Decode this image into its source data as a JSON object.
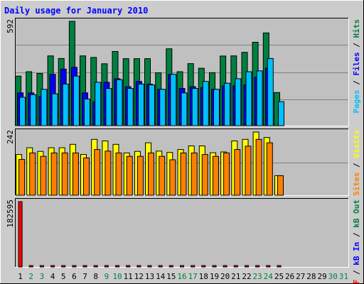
{
  "chart_data": {
    "type": "bar",
    "title": "Daily usage for January 2010",
    "categories": [
      "1",
      "2",
      "3",
      "4",
      "5",
      "6",
      "7",
      "8",
      "9",
      "10",
      "11",
      "12",
      "13",
      "14",
      "15",
      "16",
      "17",
      "18",
      "19",
      "20",
      "21",
      "22",
      "23",
      "24",
      "25",
      "26",
      "27",
      "28",
      "29",
      "30",
      "31"
    ],
    "weekend_days": [
      "2",
      "3",
      "9",
      "10",
      "16",
      "17",
      "23",
      "24",
      "30",
      "31"
    ],
    "colors": {
      "hits": "#008040",
      "files": "#0000ff",
      "pages": "#00c0ff",
      "visits": "#ffff00",
      "sites": "#ff8000",
      "kbin": "#0000ff",
      "kbout": "#008040",
      "kbf": "#ff0000",
      "weekend": "#008040",
      "weekday": "#000000",
      "title": "#0000ff"
    },
    "panels": [
      {
        "name": "hits-files-pages",
        "max_label": "592",
        "ymax": 592,
        "side_labels": [
          {
            "text": "Pages",
            "color": "#00c0ff"
          },
          {
            "text": " / ",
            "color": "#000000"
          },
          {
            "text": "Files",
            "color": "#0000ff"
          },
          {
            "text": " / ",
            "color": "#000000"
          },
          {
            "text": "Hits",
            "color": "#008040"
          }
        ],
        "series": [
          {
            "name": "Hits",
            "values": [
              281,
              306,
              296,
              396,
              381,
              592,
              396,
              387,
              351,
              421,
              380,
              380,
              380,
              300,
              436,
              306,
              352,
              326,
              301,
              395,
              396,
              416,
              473,
              526,
              188,
              0,
              0,
              0,
              0,
              0,
              0
            ]
          },
          {
            "name": "Files",
            "values": [
              186,
              186,
              166,
              291,
              321,
              331,
              186,
              136,
              246,
              266,
              221,
              251,
              236,
              206,
              291,
              211,
              221,
              216,
              206,
              226,
              226,
              231,
              276,
              326,
              0,
              0,
              0,
              0,
              0,
              0,
              0
            ]
          },
          {
            "name": "Pages",
            "values": [
              161,
              176,
              206,
              181,
              236,
              281,
              151,
              246,
              211,
              261,
              211,
              236,
              231,
              206,
              291,
              186,
              211,
              251,
              206,
              241,
              266,
              306,
              311,
              381,
              136,
              0,
              0,
              0,
              0,
              0,
              0
            ]
          }
        ]
      },
      {
        "name": "visits-sites",
        "max_label": "242",
        "ymax": 242,
        "side_labels": [
          {
            "text": "Sites",
            "color": "#ff8000"
          },
          {
            "text": " / ",
            "color": "#000000"
          },
          {
            "text": "Visits",
            "color": "#ffff00"
          }
        ],
        "series": [
          {
            "name": "Visits",
            "values": [
              156,
              182,
              168,
              182,
              182,
              195,
              156,
              214,
              208,
              195,
              162,
              168,
              201,
              169,
              164,
              175,
              189,
              189,
              163,
              166,
              208,
              214,
              242,
              221,
              75,
              0,
              0,
              0,
              0,
              0,
              0
            ]
          },
          {
            "name": "Sites",
            "values": [
              137,
              162,
              149,
              162,
              162,
              162,
              143,
              175,
              169,
              162,
              149,
              149,
              162,
              149,
              136,
              162,
              162,
              156,
              149,
              162,
              175,
              188,
              214,
              201,
              75,
              0,
              0,
              0,
              0,
              0,
              0
            ]
          }
        ]
      },
      {
        "name": "kb",
        "max_label": "182595",
        "ymax": 182595,
        "side_labels": [
          {
            "text": "kB F",
            "color": "#ff0000"
          },
          {
            "text": " / ",
            "color": "#000000"
          },
          {
            "text": "kB In",
            "color": "#0000ff"
          },
          {
            "text": " / ",
            "color": "#000000"
          },
          {
            "text": "kB Out",
            "color": "#008040"
          }
        ],
        "series": [
          {
            "name": "kB F",
            "values": [
              182595,
              2100,
              2100,
              2100,
              2100,
              3800,
              2100,
              2100,
              2100,
              2100,
              2100,
              2100,
              2100,
              2100,
              3800,
              2100,
              3800,
              2100,
              2100,
              2100,
              2100,
              2100,
              2100,
              2100,
              2100,
              0,
              0,
              0,
              0,
              0,
              0
            ]
          }
        ]
      }
    ]
  }
}
